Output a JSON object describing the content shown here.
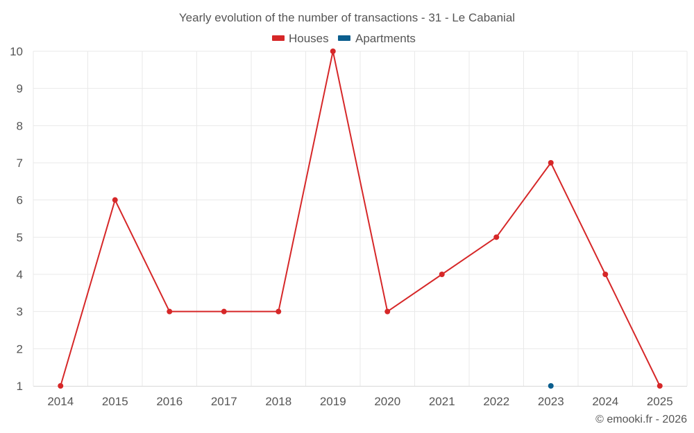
{
  "chart_data": {
    "type": "line",
    "title": "Yearly evolution of the number of transactions - 31 - Le Cabanial",
    "categories": [
      "2014",
      "2015",
      "2016",
      "2017",
      "2018",
      "2019",
      "2020",
      "2021",
      "2022",
      "2023",
      "2024",
      "2025"
    ],
    "series": [
      {
        "name": "Houses",
        "color": "#d62728",
        "values": [
          1,
          6,
          3,
          3,
          3,
          10,
          3,
          4,
          5,
          7,
          4,
          1
        ]
      },
      {
        "name": "Apartments",
        "color": "#0b5e8e",
        "values": [
          null,
          null,
          null,
          null,
          null,
          null,
          null,
          null,
          null,
          1,
          null,
          null
        ]
      }
    ],
    "y_ticks": [
      "1",
      "2",
      "3",
      "4",
      "5",
      "6",
      "7",
      "8",
      "9",
      "10"
    ],
    "ylim": [
      1,
      10
    ],
    "xlabel": "",
    "ylabel": "",
    "grid": true,
    "legend_position": "top-center",
    "credit": "© emooki.fr - 2026"
  }
}
